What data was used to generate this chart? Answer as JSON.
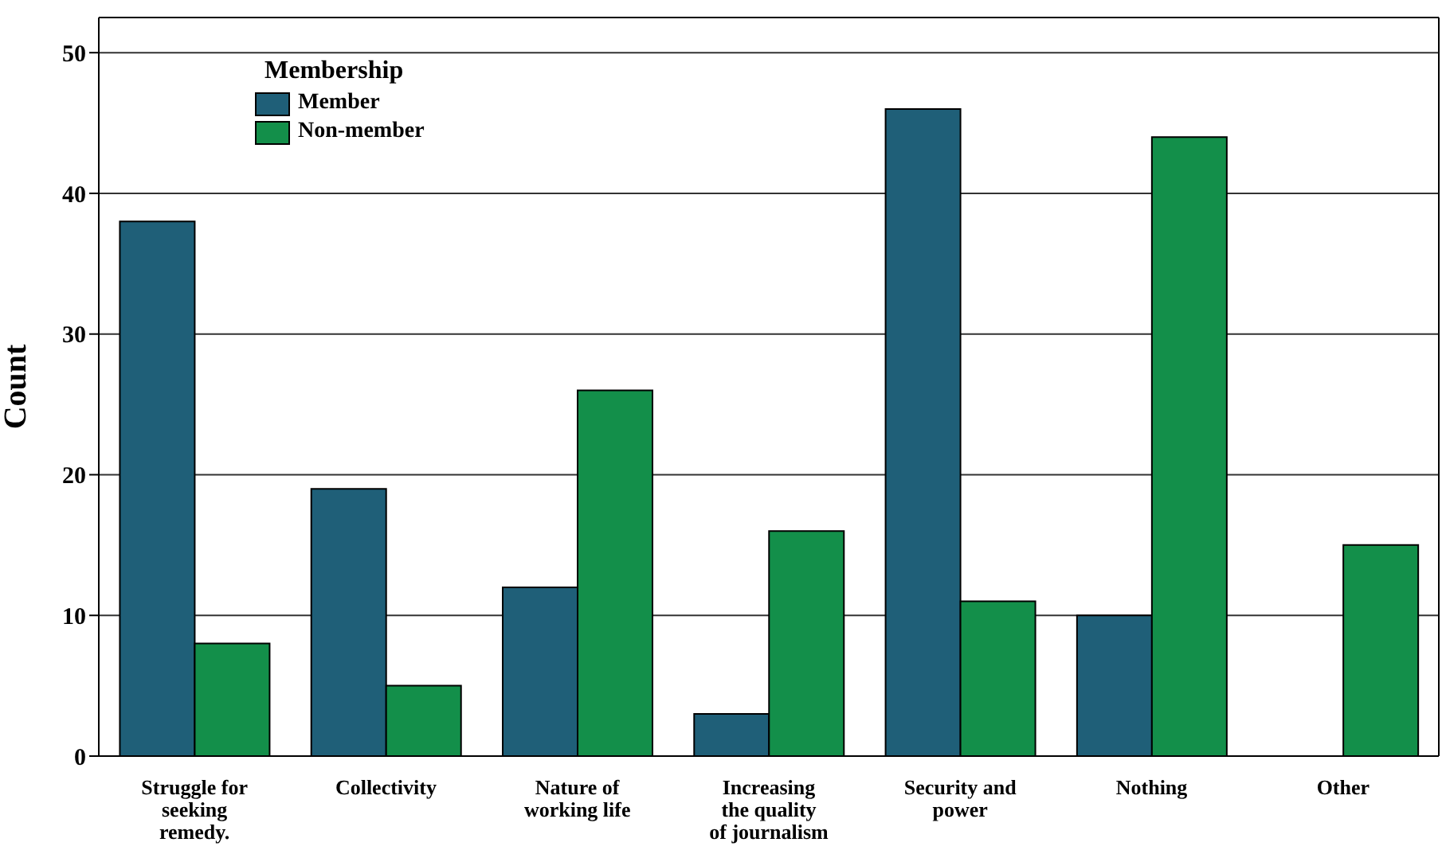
{
  "chart_data": {
    "type": "bar",
    "ylabel": "Count",
    "legend_title": "Membership",
    "categories": [
      "Struggle for seeking remedy.",
      "Collectivity",
      "Nature of working life",
      "Increasing the quality of journalism",
      "Security and power",
      "Nothing",
      "Other"
    ],
    "series": [
      {
        "name": "Member",
        "color": "#1f5f78",
        "values": [
          38,
          19,
          12,
          3,
          46,
          10,
          0
        ]
      },
      {
        "name": "Non-member",
        "color": "#138f4a",
        "values": [
          8,
          5,
          26,
          16,
          11,
          44,
          15
        ]
      }
    ],
    "ylim": [
      0,
      52.5
    ],
    "yticks": [
      0,
      10,
      20,
      30,
      40,
      50
    ],
    "grid": "y",
    "legend": "top left"
  }
}
